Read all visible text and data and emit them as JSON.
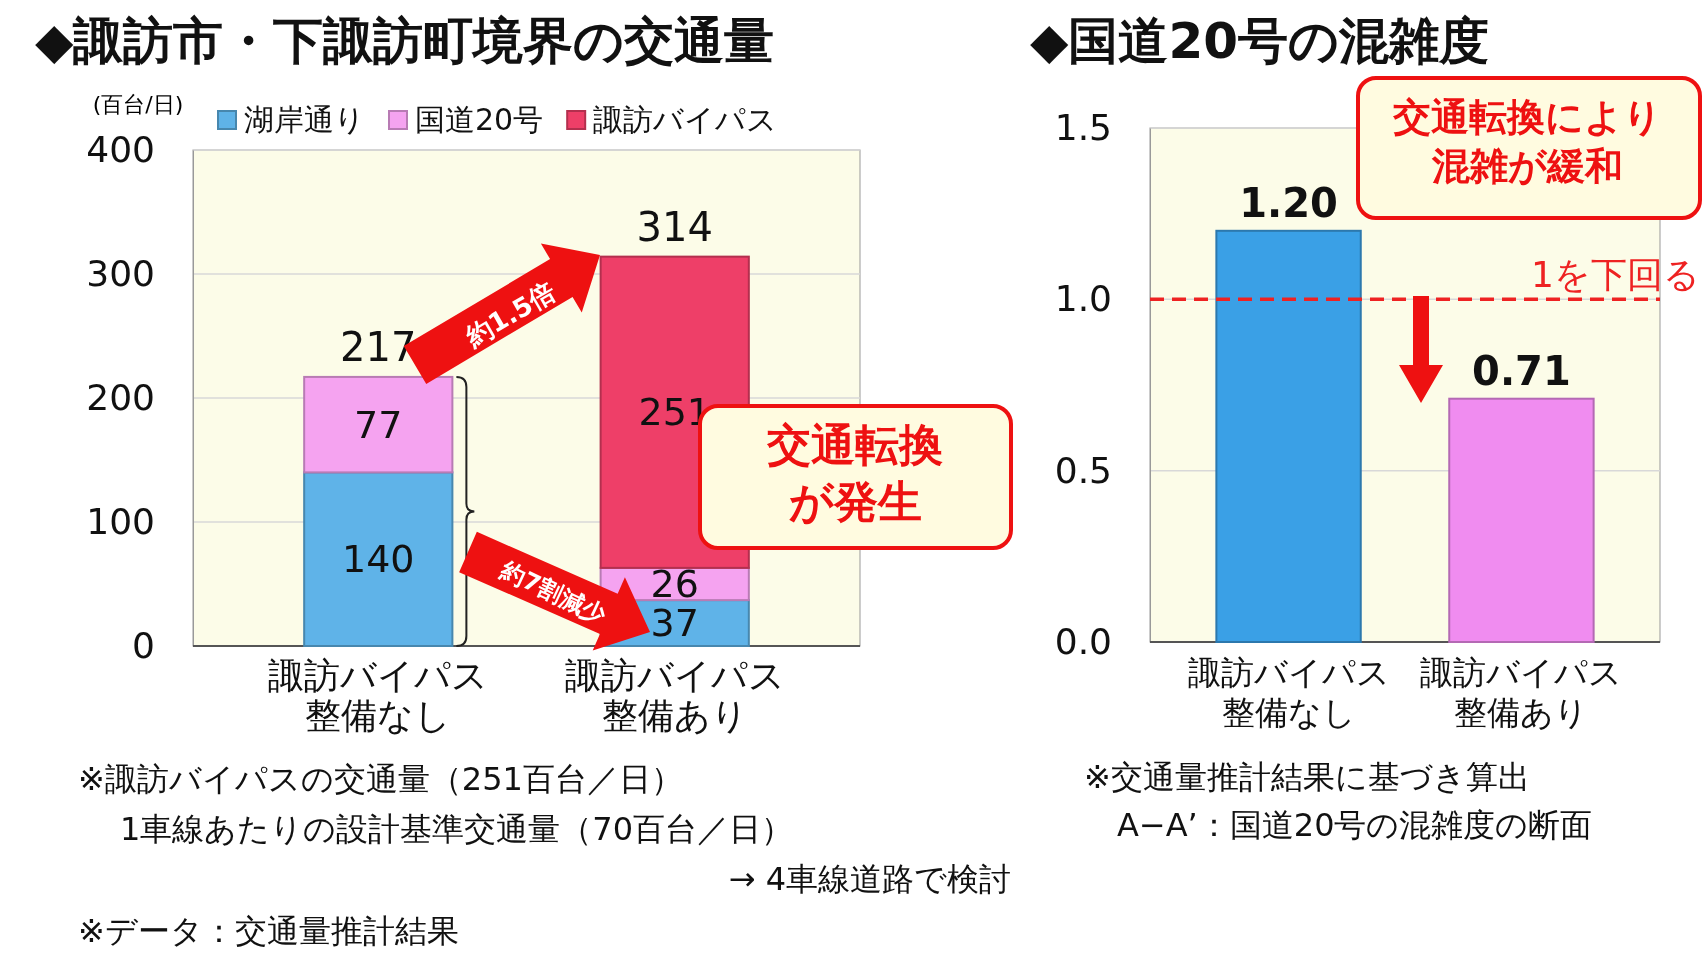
{
  "chart_data": [
    {
      "type": "bar",
      "title": "◆諏訪市・下諏訪町境界の交通量",
      "ylabel": "(百台/日)",
      "categories": [
        "諏訪バイパス整備なし",
        "諏訪バイパス整備あり"
      ],
      "stacked": true,
      "series": [
        {
          "name": "湖岸通り",
          "color": "#5fb3e8",
          "values": [
            140,
            37
          ],
          "value_labels": [
            "140",
            "37"
          ]
        },
        {
          "name": "国道20号",
          "color": "#f5a3f0",
          "values": [
            77,
            26
          ],
          "value_labels": [
            "77",
            "26"
          ]
        },
        {
          "name": "諏訪バイパス",
          "color": "#ee3f68",
          "values": [
            null,
            251
          ],
          "value_labels": [
            null,
            "251"
          ]
        }
      ],
      "totals": [
        "217",
        "314"
      ],
      "ylim": [
        0,
        400
      ],
      "yticks": [
        0,
        100,
        200,
        300,
        400
      ],
      "grid": "y",
      "legend": "top",
      "annotations": [
        "約1.5倍",
        "約7割減少",
        "交通転換が発生",
        "※諏訪バイパスの交通量（251百台／日）",
        "1車線あたりの設計基準交通量（70百台／日）",
        "→ 4車線道路で検討",
        "※データ：交通量推計結果"
      ]
    },
    {
      "type": "bar",
      "title": "◆国道20号の混雑度",
      "categories": [
        "諏訪バイパス整備なし",
        "諏訪バイパス整備あり"
      ],
      "values": [
        1.2,
        0.71
      ],
      "colors": [
        "#3aa0e6",
        "#f08cf0"
      ],
      "value_labels": [
        "1.20",
        "0.71"
      ],
      "ylim": [
        0,
        1.5
      ],
      "yticks": [
        {
          "value": 0,
          "label": "0.0"
        },
        {
          "value": 0.5,
          "label": "0.5"
        },
        {
          "value": 1,
          "label": "1.0"
        },
        {
          "value": 1.5,
          "label": "1.5"
        }
      ],
      "grid": "y",
      "ref_lines": [
        {
          "axis": "y",
          "value": 1,
          "label": "1を下回る",
          "color": "#ee2222",
          "line_style": "dashed"
        }
      ],
      "annotations": [
        "交通転換により混雑が緩和",
        "※交通量推計結果に基づき算出",
        "A−A’：国道20号の混雑度の断面"
      ]
    }
  ]
}
